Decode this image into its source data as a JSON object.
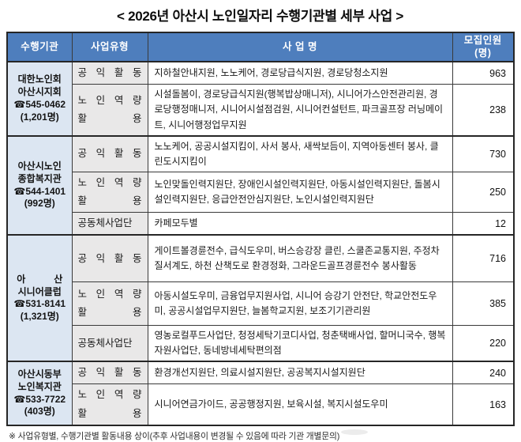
{
  "title": "< 2026년 아산시 노인일자리 수행기관별 세부 사업 >",
  "table": {
    "headers": [
      "수행기관",
      "사업유형",
      "사 업 명",
      "모집인원\n(명)"
    ],
    "groups": [
      {
        "org": "대한노인회\n아산시지회\n☎545-0462\n(1,201명)",
        "rows": [
          {
            "type": "공 익 활 동",
            "name": "지하철안내지원, 노노케어, 경로당급식지원, 경로당청소지원",
            "count": "963"
          },
          {
            "type": "노 인 역 량\n활 용",
            "name": "시설돌봄이, 경로당급식지원(행복밥상매니저), 시니어가스안전관리원, 경로당행정매니저, 시니어시설점검원, 시니어컨설턴트, 파크골프장 러닝메이트, 시니어행정업무지원",
            "count": "238"
          }
        ]
      },
      {
        "org": "아산시노인\n종합복지관\n☎544-1401\n(992명)",
        "rows": [
          {
            "type": "공 익 활 동",
            "name": "노노케어, 공공시설지킴이, 사서 봉사, 새싹보듬이, 지역아동센터 봉사, 클린도시지킴이",
            "count": "730"
          },
          {
            "type": "노 인 역 량\n활 용",
            "name": "노인맞돌인력지원단, 장애인시설인력지원단, 아동시설인력지원단, 돌봄시설인력지원단, 응급안전안심지원단, 노인시설인력지원단",
            "count": "250"
          },
          {
            "type": "공동체사업단",
            "name": "카페모두별",
            "count": "12"
          }
        ]
      },
      {
        "org": "아　　　산\n시니어클럽\n☎531-8141\n(1,321명)",
        "rows": [
          {
            "type": "공 익 활 동",
            "name": "게이트볼경륜전수, 급식도우미, 버스승강장 클린, 스쿨존교통지원, 주정차질서계도, 하천 산책도로 환경정화, 그라운드골프경륜전수 봉사활동",
            "count": "716"
          },
          {
            "type": "노 인 역 량\n활 용",
            "name": "아동시설도우미, 금융업무지원사업, 시니어 승강기 안전단, 학교안전도우미, 공공시설업무지원단, 늘봄학교지원, 보조기기관리원",
            "count": "385"
          },
          {
            "type": "공동체사업단",
            "name": "영농로컬푸드사업단, 청정세탁기코디사업, 청춘택배사업, 할머니국수, 행복자원사업단, 동네방네세탁편의점",
            "count": "220"
          }
        ]
      },
      {
        "org": "아산시동부\n노인복지관\n☎533-7722\n(403명)",
        "rows": [
          {
            "type": "공 익 활 동",
            "name": "환경개선지원단, 의료시설지원단, 공공복지시설지원단",
            "count": "240"
          },
          {
            "type": "노 인 역 량\n활 용",
            "name": "시니어연금가이드, 공공행정지원, 보육시설, 복지시설도우미",
            "count": "163"
          }
        ]
      }
    ]
  },
  "footnote": "※ 사업유형별, 수행기관별 활동내용 상이(추후 사업내용이 변경될 수 있음에 따라 기관 개별문의)",
  "colors": {
    "header_bg": "#4e7ebd",
    "org_bg": "#dce6f2",
    "type_bg": "#e9e8e8",
    "border": "#3a3a3a"
  }
}
